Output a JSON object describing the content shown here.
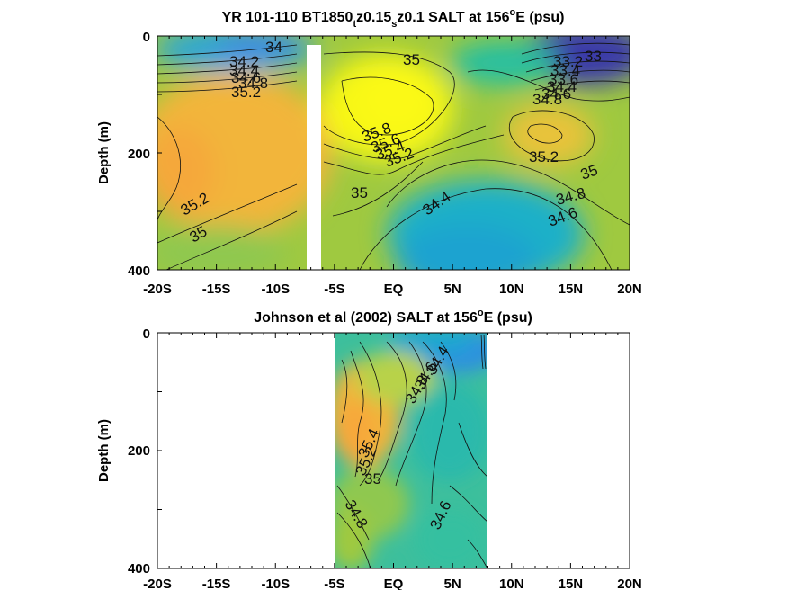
{
  "chart_data": [
    {
      "type": "heatmap",
      "title_parts": [
        "YR 101-110 BT1850",
        "t",
        "z0.15",
        "s",
        "z0.1 SALT at 156",
        "o",
        "E (psu)"
      ],
      "ylabel": "Depth (m)",
      "xticks": [
        "-20S",
        "-15S",
        "-10S",
        "-5S",
        "EQ",
        "5N",
        "10N",
        "15N",
        "20N"
      ],
      "yticks": [
        "0",
        "200",
        "400"
      ],
      "xlim": [
        -20,
        20
      ],
      "ylim": [
        0,
        400
      ],
      "y_reversed": true,
      "data_x_range": [
        -20,
        20
      ],
      "masked_x": [
        -7,
        -6.3
      ],
      "contour_labels": [
        "34",
        "34.2",
        "34.4",
        "34.6",
        "34.8",
        "35",
        "35.2",
        "35.2",
        "35",
        "35.8",
        "35.6",
        "35.4",
        "35.2",
        "35",
        "34.4",
        "35.2",
        "35",
        "34.8",
        "34.6",
        "33",
        "33.2",
        "33.4",
        "33.6",
        "34.4",
        "34.6",
        "34.8"
      ]
    },
    {
      "type": "heatmap",
      "title_parts": [
        "Johnson et al (2002) SALT at 156",
        "o",
        "E (psu)"
      ],
      "ylabel": "Depth (m)",
      "xticks": [
        "-20S",
        "-15S",
        "-10S",
        "-5S",
        "EQ",
        "5N",
        "10N",
        "15N",
        "20N"
      ],
      "yticks": [
        "0",
        "200",
        "400"
      ],
      "xlim": [
        -20,
        20
      ],
      "ylim": [
        0,
        400
      ],
      "y_reversed": true,
      "data_x_range": [
        -5,
        8
      ],
      "contour_labels": [
        "34.4",
        "34.6",
        "34.8",
        "35.4",
        "35.2",
        "35",
        "34.6",
        "34.8"
      ]
    }
  ],
  "colors": {
    "low": "#3a2fa8",
    "mid_low": "#1f9ad6",
    "mid": "#27bfa0",
    "mid_high": "#9fc940",
    "high": "#f2b53a",
    "max": "#f7f718"
  }
}
